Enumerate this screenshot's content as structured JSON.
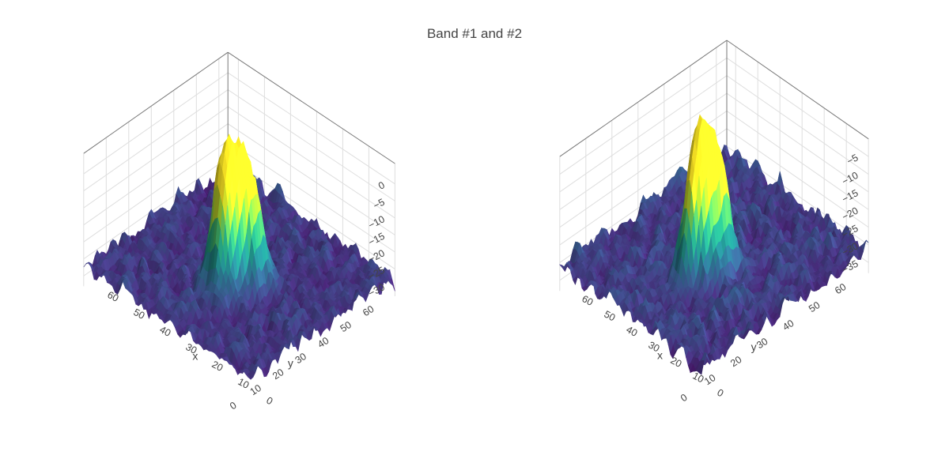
{
  "title": "Band #1 and #2",
  "colorscale": "viridis",
  "colors": [
    "#440154",
    "#3b528b",
    "#21918c",
    "#5ec962",
    "#fde725"
  ],
  "chart_data": [
    {
      "type": "surface",
      "name": "",
      "xlabel": "x",
      "ylabel": "y",
      "zlabel": "",
      "x_ticks": [
        0,
        10,
        20,
        30,
        40,
        50,
        60
      ],
      "y_ticks": [
        0,
        10,
        20,
        30,
        40,
        50,
        60
      ],
      "z_ticks": [
        -30,
        -25,
        -20,
        -15,
        -10,
        -5,
        0
      ],
      "x_tick_labels": [
        "0",
        "10",
        "20",
        "30",
        "40",
        "50",
        "60"
      ],
      "y_tick_labels": [
        "0",
        "10",
        "20",
        "30",
        "40",
        "50",
        "60"
      ],
      "z_tick_labels": [
        "−30",
        "−25",
        "−20",
        "−15",
        "−10",
        "−5",
        "0"
      ],
      "xlim": [
        0,
        64
      ],
      "ylim": [
        0,
        64
      ],
      "zlim": [
        -33,
        6
      ],
      "baseline": -27,
      "noise_amplitude": 2.2,
      "peaks": [
        {
          "x": 30,
          "y": 22,
          "height": 34,
          "sigma": 3.2
        },
        {
          "x": 28,
          "y": 27,
          "height": 30,
          "sigma": 3.0
        },
        {
          "x": 25,
          "y": 31,
          "height": 24,
          "sigma": 2.8
        }
      ]
    },
    {
      "type": "surface",
      "name": "",
      "xlabel": "x",
      "ylabel": "y",
      "zlabel": "",
      "x_ticks": [
        0,
        10,
        20,
        30,
        40,
        50,
        60
      ],
      "y_ticks": [
        0,
        10,
        20,
        30,
        40,
        50,
        60
      ],
      "z_ticks": [
        -35,
        -30,
        -25,
        -20,
        -15,
        -10,
        -5
      ],
      "x_tick_labels": [
        "0",
        "10",
        "20",
        "30",
        "40",
        "50",
        "60"
      ],
      "y_tick_labels": [
        "0",
        "10",
        "20",
        "30",
        "40",
        "50",
        "60"
      ],
      "z_tick_labels": [
        "−35",
        "−30",
        "−25",
        "−20",
        "−15",
        "−10",
        "−5"
      ],
      "xlim": [
        0,
        64
      ],
      "ylim": [
        0,
        64
      ],
      "zlim": [
        -38,
        0
      ],
      "baseline": -31,
      "noise_amplitude": 2.4,
      "peaks": [
        {
          "x": 30,
          "y": 22,
          "height": 30,
          "sigma": 3.0
        },
        {
          "x": 28,
          "y": 26,
          "height": 27,
          "sigma": 3.0
        },
        {
          "x": 26,
          "y": 30,
          "height": 21,
          "sigma": 2.8
        }
      ]
    }
  ]
}
